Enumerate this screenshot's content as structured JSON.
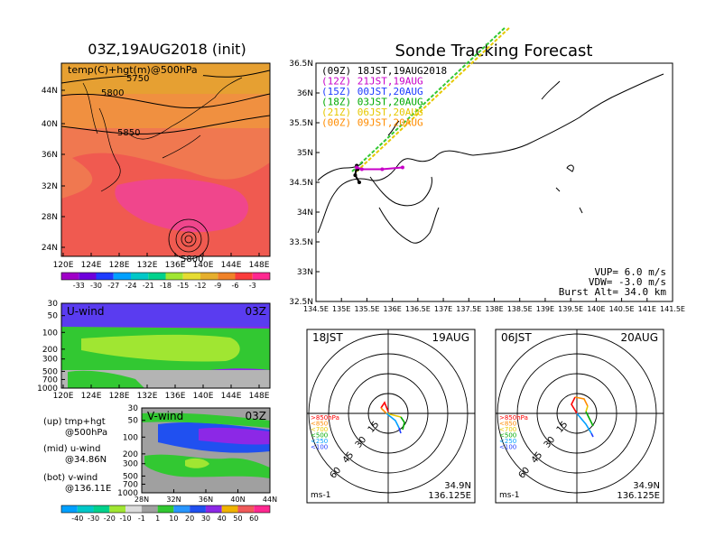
{
  "left_panel": {
    "title": "03Z,19AUG2018 (init)",
    "map_label": "temp(C)+hgt(m)@500hPa",
    "lat_ticks": [
      "44N",
      "40N",
      "36N",
      "32N",
      "28N",
      "24N"
    ],
    "lon_ticks": [
      "120E",
      "124E",
      "128E",
      "132E",
      "136E",
      "140E",
      "144E",
      "148E"
    ],
    "contour_labels": [
      "5750",
      "5800",
      "5850",
      "5800"
    ],
    "temp_colorbar_ticks": [
      "-33",
      "-30",
      "-27",
      "-24",
      "-21",
      "-18",
      "-15",
      "-12",
      "-9",
      "-6",
      "-3"
    ],
    "temp_colorbar_colors": [
      "#a000c8",
      "#6e00dc",
      "#1e3cff",
      "#00a0ff",
      "#00c8c8",
      "#00d28c",
      "#a0e632",
      "#e6dc32",
      "#e6af2d",
      "#f08228",
      "#fa3c3c",
      "#ff2890"
    ]
  },
  "u_panel": {
    "label": "U-wind",
    "time": "03Z",
    "pressure_ticks": [
      "30",
      "50",
      "100",
      "200",
      "300",
      "500",
      "700",
      "1000"
    ],
    "lon_ticks": [
      "120E",
      "124E",
      "128E",
      "132E",
      "136E",
      "140E",
      "144E",
      "148E"
    ]
  },
  "v_panel": {
    "label": "V-wind",
    "time": "03Z",
    "pressure_ticks": [
      "30",
      "50",
      "100",
      "200",
      "300",
      "500",
      "700",
      "1000"
    ],
    "lat_ticks": [
      "28N",
      "32N",
      "36N",
      "40N",
      "44N"
    ]
  },
  "panel_notes": [
    [
      "(up) tmp+hgt",
      "@500hPa"
    ],
    [
      "(mid) u-wind",
      "@34.86N"
    ],
    [
      "(bot) v-wind",
      "@136.11E"
    ]
  ],
  "wind_colorbar": {
    "ticks": [
      "-40",
      "-30",
      "-20",
      "-10",
      "-1",
      "1",
      "10",
      "20",
      "30",
      "40",
      "50",
      "60"
    ],
    "colors": [
      "#00a0ff",
      "#00c8c8",
      "#00d28c",
      "#a0e632",
      "#dcdcdc",
      "#a0a0a0",
      "#32c832",
      "#2896ff",
      "#2050f0",
      "#8c28e6",
      "#f0b400",
      "#f05a5a",
      "#ff2890"
    ]
  },
  "right_panel": {
    "title": "Sonde Tracking Forecast",
    "lat_ticks": [
      "36.5N",
      "36N",
      "35.5N",
      "35N",
      "34.5N",
      "34N",
      "33.5N",
      "33N",
      "32.5N"
    ],
    "lon_ticks": [
      "134.5E",
      "135E",
      "135.5E",
      "136E",
      "136.5E",
      "137E",
      "137.5E",
      "138E",
      "138.5E",
      "139E",
      "139.5E",
      "140E",
      "140.5E",
      "141E",
      "141.5E"
    ],
    "legend": [
      {
        "text": "(09Z)  18JST,19AUG2018",
        "color": "#000000"
      },
      {
        "text": "(12Z)  21JST,19AUG",
        "color": "#c800c8"
      },
      {
        "text": "(15Z)  00JST,20AUG",
        "color": "#1e3cff"
      },
      {
        "text": "(18Z)  03JST,20AUG",
        "color": "#00aa00"
      },
      {
        "text": "(21Z)  06JST,20AUG",
        "color": "#e6c800"
      },
      {
        "text": "(00Z)  09JST,20AUG",
        "color": "#ff8c00"
      }
    ],
    "vup": "VUP=  6.0 m/s",
    "vdw": "VDW= -3.0 m/s",
    "burst": "Burst Alt= 34.0 km"
  },
  "hodographs": [
    {
      "time_label": "18JST",
      "date_label": "19AUG",
      "ring_labels": [
        "15",
        "30",
        "45",
        "60"
      ],
      "levels": [
        ">850hPa",
        "<850",
        "<700",
        "<500",
        "<250",
        "<100"
      ],
      "level_colors": [
        "#ff0000",
        "#ff8c00",
        "#e6c800",
        "#00aa00",
        "#00a0ff",
        "#1e3cff"
      ],
      "unit": "ms-1",
      "lat": "34.9N",
      "lon": "136.125E"
    },
    {
      "time_label": "06JST",
      "date_label": "20AUG",
      "ring_labels": [
        "15",
        "30",
        "45",
        "60"
      ],
      "levels": [
        ">850hPa",
        "<850",
        "<700",
        "<500",
        "<250",
        "<100"
      ],
      "level_colors": [
        "#ff0000",
        "#ff8c00",
        "#e6c800",
        "#00aa00",
        "#00a0ff",
        "#1e3cff"
      ],
      "unit": "ms-1",
      "lat": "34.9N",
      "lon": "136.125E"
    }
  ],
  "chart_data": [
    {
      "type": "heatmap",
      "title": "03Z,19AUG2018 (init)",
      "variable": "temp(C)+hgt(m)@500hPa",
      "x_range": [
        "120E",
        "150E"
      ],
      "y_range": [
        "22N",
        "47N"
      ],
      "contour_labels": [
        5750,
        5800,
        5850,
        5800
      ],
      "colorbar_levels": [
        -33,
        -30,
        -27,
        -24,
        -21,
        -18,
        -15,
        -12,
        -9,
        -6,
        -3
      ]
    },
    {
      "type": "heatmap",
      "title": "U-wind",
      "y_log_pressure": true,
      "y_ticks": [
        30,
        50,
        100,
        200,
        300,
        500,
        700,
        1000
      ],
      "colorbar_levels": [
        -40,
        -30,
        -20,
        -10,
        -1,
        1,
        10,
        20,
        30,
        40,
        50,
        60
      ]
    },
    {
      "type": "heatmap",
      "title": "V-wind",
      "y_log_pressure": true,
      "y_ticks": [
        30,
        50,
        100,
        200,
        300,
        500,
        700,
        1000
      ]
    },
    {
      "type": "line",
      "title": "Sonde Tracking Forecast",
      "series": [
        {
          "name": "(09Z)  18JST,19AUG2018",
          "x": [
            135.32,
            135.3,
            135.27,
            135.35
          ],
          "y": [
            34.72,
            34.78,
            34.62,
            34.5
          ]
        },
        {
          "name": "(12Z)  21JST,19AUG",
          "x": [
            135.3,
            135.4,
            135.8,
            136.2
          ],
          "y": [
            34.75,
            34.72,
            34.72,
            34.75
          ]
        }
      ],
      "xlim": [
        134.5,
        141.5
      ],
      "ylim": [
        32.5,
        36.5
      ]
    }
  ]
}
